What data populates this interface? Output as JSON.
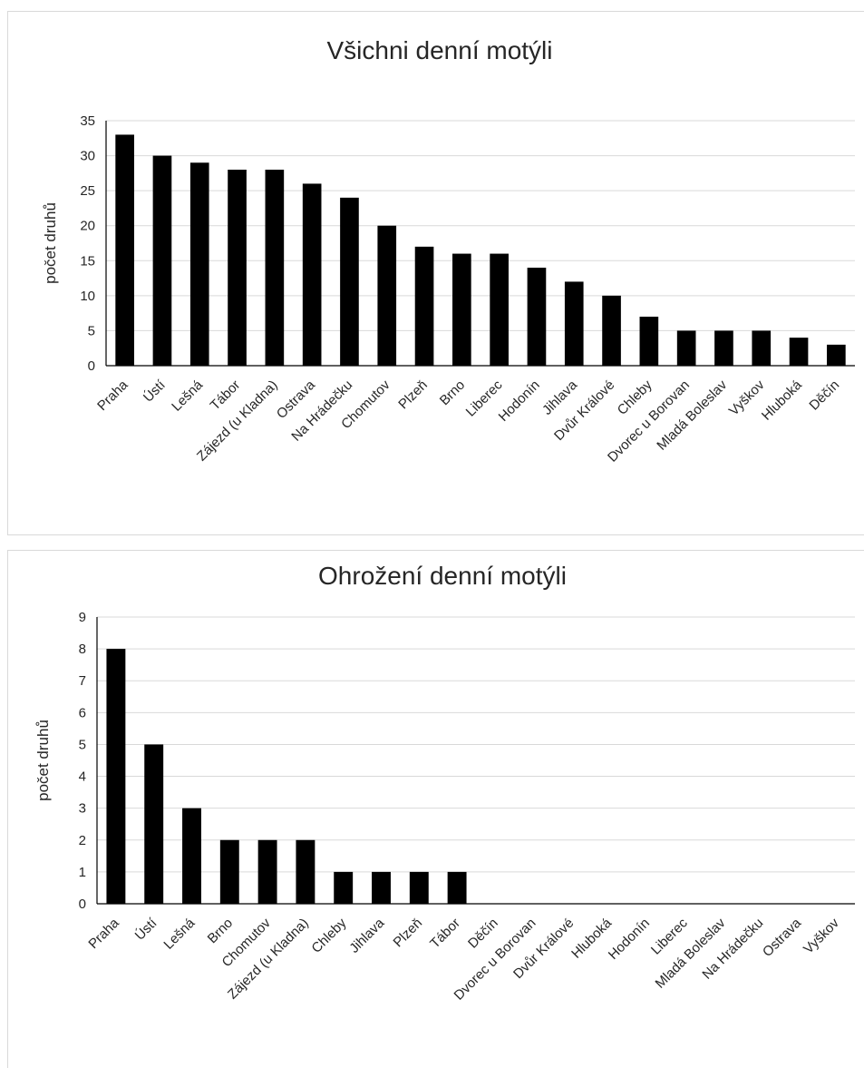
{
  "chart_data": [
    {
      "type": "bar",
      "title": "Všichni denní motýli",
      "xlabel": "",
      "ylabel": "počet druhů",
      "ylim": [
        0,
        35
      ],
      "yticks": [
        0,
        5,
        10,
        15,
        20,
        25,
        30,
        35
      ],
      "grid": true,
      "legend": "none",
      "bar_color": "#000000",
      "categories": [
        "Praha",
        "Ústí",
        "Lešná",
        "Tábor",
        "Zájezd (u Kladna)",
        "Ostrava",
        "Na Hrádečku",
        "Chomutov",
        "Plzeň",
        "Brno",
        "Liberec",
        "Hodonín",
        "Jihlava",
        "Dvůr Králové",
        "Chleby",
        "Dvorec u Borovan",
        "Mladá Boleslav",
        "Vyškov",
        "Hluboká",
        "Děčín"
      ],
      "values": [
        33,
        30,
        29,
        28,
        28,
        26,
        24,
        20,
        17,
        16,
        16,
        14,
        12,
        10,
        7,
        5,
        5,
        5,
        4,
        3
      ]
    },
    {
      "type": "bar",
      "title": "Ohrožení denní motýli",
      "xlabel": "",
      "ylabel": "počet druhů",
      "ylim": [
        0,
        9
      ],
      "yticks": [
        0,
        1,
        2,
        3,
        4,
        5,
        6,
        7,
        8,
        9
      ],
      "grid": true,
      "legend": "none",
      "bar_color": "#000000",
      "categories": [
        "Praha",
        "Ústí",
        "Lešná",
        "Brno",
        "Chomutov",
        "Zájezd (u Kladna)",
        "Chleby",
        "Jihlava",
        "Plzeň",
        "Tábor",
        "Děčín",
        "Dvorec u Borovan",
        "Dvůr Králové",
        "Hluboká",
        "Hodonín",
        "Liberec",
        "Mladá Boleslav",
        "Na Hrádečku",
        "Ostrava",
        "Vyškov"
      ],
      "values": [
        8,
        5,
        3,
        2,
        2,
        2,
        1,
        1,
        1,
        1,
        0,
        0,
        0,
        0,
        0,
        0,
        0,
        0,
        0,
        0
      ]
    }
  ]
}
